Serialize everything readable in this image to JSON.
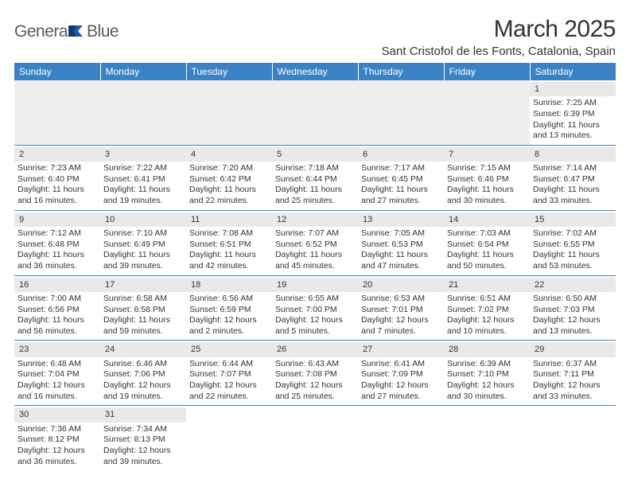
{
  "logo": {
    "part1": "Genera",
    "part2": "Blue"
  },
  "title": "March 2025",
  "location": "Sant Cristofol de les Fonts, Catalonia, Spain",
  "colors": {
    "header_bg": "#3b82c4",
    "header_text": "#ffffff",
    "daynum_bg": "#e9e9e9",
    "border": "#3b82c4",
    "text": "#333333",
    "logo_gray": "#5a5a5a",
    "logo_blue": "#1b5da0",
    "page_bg": "#ffffff"
  },
  "day_headers": [
    "Sunday",
    "Monday",
    "Tuesday",
    "Wednesday",
    "Thursday",
    "Friday",
    "Saturday"
  ],
  "weeks": [
    [
      null,
      null,
      null,
      null,
      null,
      null,
      {
        "n": "1",
        "sunrise": "Sunrise: 7:25 AM",
        "sunset": "Sunset: 6:39 PM",
        "day1": "Daylight: 11 hours",
        "day2": "and 13 minutes."
      }
    ],
    [
      {
        "n": "2",
        "sunrise": "Sunrise: 7:23 AM",
        "sunset": "Sunset: 6:40 PM",
        "day1": "Daylight: 11 hours",
        "day2": "and 16 minutes."
      },
      {
        "n": "3",
        "sunrise": "Sunrise: 7:22 AM",
        "sunset": "Sunset: 6:41 PM",
        "day1": "Daylight: 11 hours",
        "day2": "and 19 minutes."
      },
      {
        "n": "4",
        "sunrise": "Sunrise: 7:20 AM",
        "sunset": "Sunset: 6:42 PM",
        "day1": "Daylight: 11 hours",
        "day2": "and 22 minutes."
      },
      {
        "n": "5",
        "sunrise": "Sunrise: 7:18 AM",
        "sunset": "Sunset: 6:44 PM",
        "day1": "Daylight: 11 hours",
        "day2": "and 25 minutes."
      },
      {
        "n": "6",
        "sunrise": "Sunrise: 7:17 AM",
        "sunset": "Sunset: 6:45 PM",
        "day1": "Daylight: 11 hours",
        "day2": "and 27 minutes."
      },
      {
        "n": "7",
        "sunrise": "Sunrise: 7:15 AM",
        "sunset": "Sunset: 6:46 PM",
        "day1": "Daylight: 11 hours",
        "day2": "and 30 minutes."
      },
      {
        "n": "8",
        "sunrise": "Sunrise: 7:14 AM",
        "sunset": "Sunset: 6:47 PM",
        "day1": "Daylight: 11 hours",
        "day2": "and 33 minutes."
      }
    ],
    [
      {
        "n": "9",
        "sunrise": "Sunrise: 7:12 AM",
        "sunset": "Sunset: 6:48 PM",
        "day1": "Daylight: 11 hours",
        "day2": "and 36 minutes."
      },
      {
        "n": "10",
        "sunrise": "Sunrise: 7:10 AM",
        "sunset": "Sunset: 6:49 PM",
        "day1": "Daylight: 11 hours",
        "day2": "and 39 minutes."
      },
      {
        "n": "11",
        "sunrise": "Sunrise: 7:08 AM",
        "sunset": "Sunset: 6:51 PM",
        "day1": "Daylight: 11 hours",
        "day2": "and 42 minutes."
      },
      {
        "n": "12",
        "sunrise": "Sunrise: 7:07 AM",
        "sunset": "Sunset: 6:52 PM",
        "day1": "Daylight: 11 hours",
        "day2": "and 45 minutes."
      },
      {
        "n": "13",
        "sunrise": "Sunrise: 7:05 AM",
        "sunset": "Sunset: 6:53 PM",
        "day1": "Daylight: 11 hours",
        "day2": "and 47 minutes."
      },
      {
        "n": "14",
        "sunrise": "Sunrise: 7:03 AM",
        "sunset": "Sunset: 6:54 PM",
        "day1": "Daylight: 11 hours",
        "day2": "and 50 minutes."
      },
      {
        "n": "15",
        "sunrise": "Sunrise: 7:02 AM",
        "sunset": "Sunset: 6:55 PM",
        "day1": "Daylight: 11 hours",
        "day2": "and 53 minutes."
      }
    ],
    [
      {
        "n": "16",
        "sunrise": "Sunrise: 7:00 AM",
        "sunset": "Sunset: 6:56 PM",
        "day1": "Daylight: 11 hours",
        "day2": "and 56 minutes."
      },
      {
        "n": "17",
        "sunrise": "Sunrise: 6:58 AM",
        "sunset": "Sunset: 6:58 PM",
        "day1": "Daylight: 11 hours",
        "day2": "and 59 minutes."
      },
      {
        "n": "18",
        "sunrise": "Sunrise: 6:56 AM",
        "sunset": "Sunset: 6:59 PM",
        "day1": "Daylight: 12 hours",
        "day2": "and 2 minutes."
      },
      {
        "n": "19",
        "sunrise": "Sunrise: 6:55 AM",
        "sunset": "Sunset: 7:00 PM",
        "day1": "Daylight: 12 hours",
        "day2": "and 5 minutes."
      },
      {
        "n": "20",
        "sunrise": "Sunrise: 6:53 AM",
        "sunset": "Sunset: 7:01 PM",
        "day1": "Daylight: 12 hours",
        "day2": "and 7 minutes."
      },
      {
        "n": "21",
        "sunrise": "Sunrise: 6:51 AM",
        "sunset": "Sunset: 7:02 PM",
        "day1": "Daylight: 12 hours",
        "day2": "and 10 minutes."
      },
      {
        "n": "22",
        "sunrise": "Sunrise: 6:50 AM",
        "sunset": "Sunset: 7:03 PM",
        "day1": "Daylight: 12 hours",
        "day2": "and 13 minutes."
      }
    ],
    [
      {
        "n": "23",
        "sunrise": "Sunrise: 6:48 AM",
        "sunset": "Sunset: 7:04 PM",
        "day1": "Daylight: 12 hours",
        "day2": "and 16 minutes."
      },
      {
        "n": "24",
        "sunrise": "Sunrise: 6:46 AM",
        "sunset": "Sunset: 7:06 PM",
        "day1": "Daylight: 12 hours",
        "day2": "and 19 minutes."
      },
      {
        "n": "25",
        "sunrise": "Sunrise: 6:44 AM",
        "sunset": "Sunset: 7:07 PM",
        "day1": "Daylight: 12 hours",
        "day2": "and 22 minutes."
      },
      {
        "n": "26",
        "sunrise": "Sunrise: 6:43 AM",
        "sunset": "Sunset: 7:08 PM",
        "day1": "Daylight: 12 hours",
        "day2": "and 25 minutes."
      },
      {
        "n": "27",
        "sunrise": "Sunrise: 6:41 AM",
        "sunset": "Sunset: 7:09 PM",
        "day1": "Daylight: 12 hours",
        "day2": "and 27 minutes."
      },
      {
        "n": "28",
        "sunrise": "Sunrise: 6:39 AM",
        "sunset": "Sunset: 7:10 PM",
        "day1": "Daylight: 12 hours",
        "day2": "and 30 minutes."
      },
      {
        "n": "29",
        "sunrise": "Sunrise: 6:37 AM",
        "sunset": "Sunset: 7:11 PM",
        "day1": "Daylight: 12 hours",
        "day2": "and 33 minutes."
      }
    ],
    [
      {
        "n": "30",
        "sunrise": "Sunrise: 7:36 AM",
        "sunset": "Sunset: 8:12 PM",
        "day1": "Daylight: 12 hours",
        "day2": "and 36 minutes."
      },
      {
        "n": "31",
        "sunrise": "Sunrise: 7:34 AM",
        "sunset": "Sunset: 8:13 PM",
        "day1": "Daylight: 12 hours",
        "day2": "and 39 minutes."
      },
      null,
      null,
      null,
      null,
      null
    ]
  ]
}
